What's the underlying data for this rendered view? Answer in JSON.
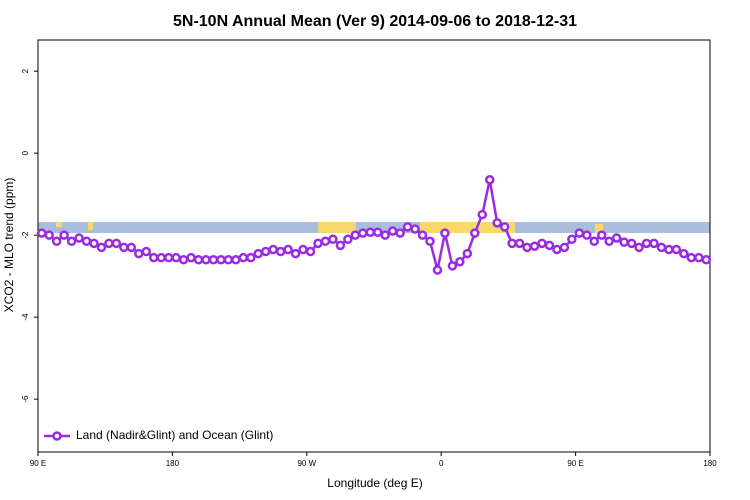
{
  "chart_data": {
    "type": "line",
    "title": "5N-10N Annual Mean (Ver 9)   2014-09-06 to 2018-12-31",
    "x_label": "Longitude (deg E)",
    "y_label": "XCO2 - MLO trend (ppm)",
    "xlim": [
      90,
      540
    ],
    "ylim": [
      -7.29,
      2.76
    ],
    "xticks": [
      {
        "value": 90,
        "label": "90 E"
      },
      180,
      {
        "value": 270,
        "label": "90 W"
      },
      {
        "value": 360,
        "label": "0"
      },
      {
        "value": 450,
        "label": "90 E"
      },
      {
        "value": 540,
        "label": "180"
      }
    ],
    "yticks": [
      -6,
      -4,
      -2,
      0,
      2
    ],
    "legend": "bottom-left",
    "x": [
      92.5,
      97.5,
      102.5,
      107.5,
      112.5,
      117.5,
      122.5,
      127.5,
      132.5,
      137.5,
      142.5,
      147.5,
      152.5,
      157.5,
      162.5,
      167.5,
      172.5,
      177.5,
      182.5,
      187.5,
      192.5,
      197.5,
      202.5,
      207.5,
      212.5,
      217.5,
      222.5,
      227.5,
      232.5,
      237.5,
      242.5,
      247.5,
      252.5,
      257.5,
      262.5,
      267.5,
      272.5,
      277.5,
      282.5,
      287.5,
      292.5,
      297.5,
      302.5,
      307.5,
      312.5,
      317.5,
      322.5,
      327.5,
      332.5,
      337.5,
      342.5,
      347.5,
      352.5,
      357.5,
      362.5,
      367.5,
      372.5,
      377.5,
      382.5,
      387.5,
      392.5,
      397.5,
      402.5,
      407.5,
      412.5,
      417.5,
      422.5,
      427.5,
      432.5,
      437.5,
      442.5,
      447.5,
      452.5,
      457.5,
      462.5,
      467.5,
      472.5,
      477.5,
      482.5,
      487.5,
      492.5,
      497.5,
      502.5,
      507.5,
      512.5,
      517.5,
      522.5,
      527.5,
      532.5,
      537.5
    ],
    "series": [
      {
        "name": "Land (Nadir&Glint) and Ocean (Glint)",
        "color": "#9a2be2",
        "values": [
          -1.95,
          -2.0,
          -2.15,
          -2.0,
          -2.15,
          -2.07,
          -2.15,
          -2.2,
          -2.3,
          -2.2,
          -2.2,
          -2.3,
          -2.3,
          -2.45,
          -2.4,
          -2.55,
          -2.55,
          -2.55,
          -2.55,
          -2.6,
          -2.55,
          -2.6,
          -2.6,
          -2.6,
          -2.6,
          -2.6,
          -2.6,
          -2.55,
          -2.55,
          -2.45,
          -2.4,
          -2.35,
          -2.4,
          -2.35,
          -2.45,
          -2.35,
          -2.4,
          -2.2,
          -2.15,
          -2.1,
          -2.25,
          -2.1,
          -2.0,
          -1.95,
          -1.93,
          -1.93,
          -2.0,
          -1.9,
          -1.95,
          -1.8,
          -1.85,
          -2.0,
          -2.15,
          -2.85,
          -1.95,
          -2.75,
          -2.65,
          -2.45,
          -1.95,
          -1.5,
          -0.65,
          -1.7,
          -1.8,
          -2.2,
          -2.2,
          -2.3,
          -2.27,
          -2.2,
          -2.25,
          -2.35,
          -2.3,
          -2.1,
          -1.95,
          -2.0,
          -2.15,
          -2.0,
          -2.15,
          -2.07,
          -2.17,
          -2.2,
          -2.3,
          -2.2,
          -2.2,
          -2.3,
          -2.35,
          -2.35,
          -2.45,
          -2.55,
          -2.55,
          -2.6
        ]
      }
    ]
  }
}
